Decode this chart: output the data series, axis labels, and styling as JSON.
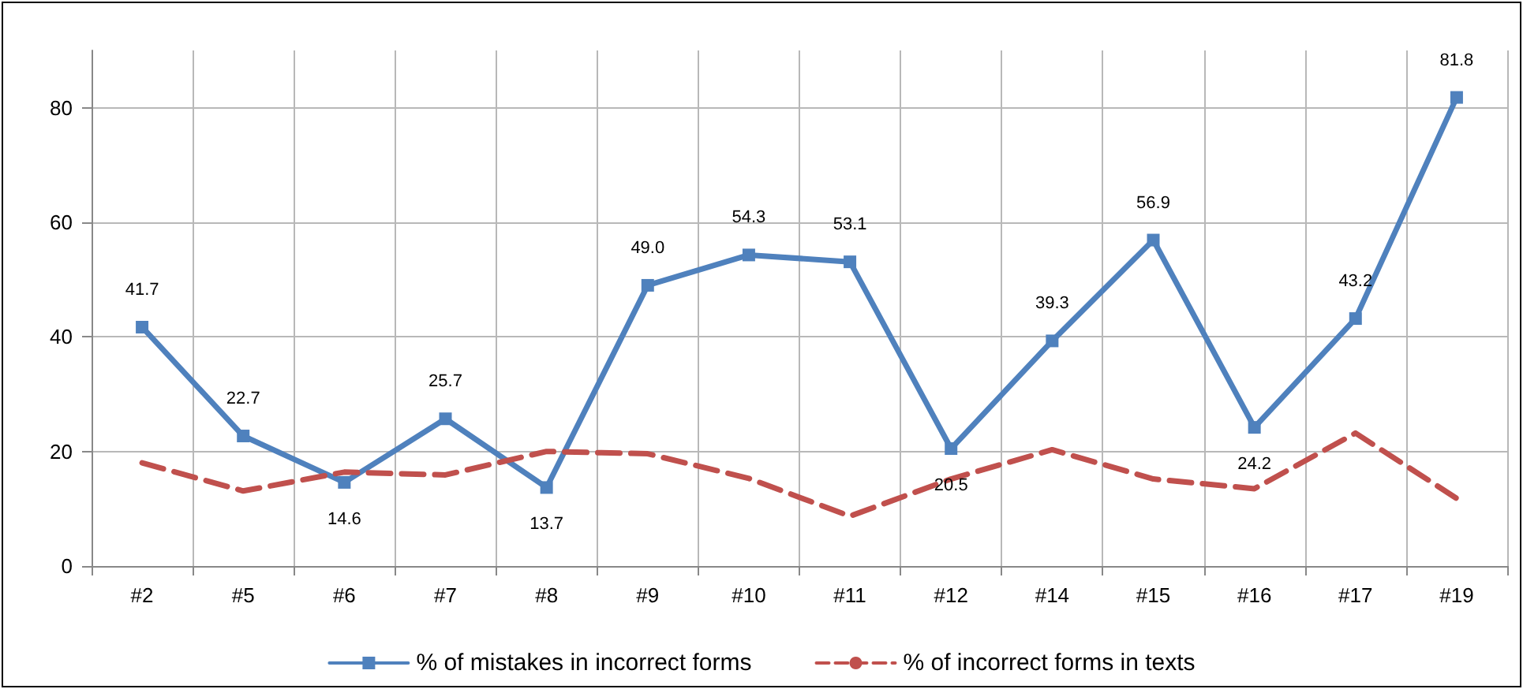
{
  "chart_data": {
    "type": "line",
    "categories": [
      "#2",
      "#5",
      "#6",
      "#7",
      "#8",
      "#9",
      "#10",
      "#11",
      "#12",
      "#14",
      "#15",
      "#16",
      "#17",
      "#19"
    ],
    "series": [
      {
        "name": "% of mistakes in incorrect forms",
        "color": "#4f81bd",
        "marker": "square",
        "line_style": "solid",
        "values": [
          41.7,
          22.7,
          14.6,
          25.7,
          13.7,
          49.0,
          54.3,
          53.1,
          20.5,
          39.3,
          56.9,
          24.2,
          43.2,
          81.8
        ],
        "value_labels": [
          "41.7",
          "22.7",
          "14.6",
          "25.7",
          "13.7",
          "49.0",
          "54.3",
          "53.1",
          "20.5",
          "39.3",
          "56.9",
          "24.2",
          "43.2",
          "81.8"
        ]
      },
      {
        "name": "% of incorrect forms in texts",
        "color": "#c0504d",
        "marker": "none",
        "line_style": "dashed",
        "values": [
          18,
          13.1,
          16.4,
          15.9,
          20,
          19.6,
          15.3,
          8.7,
          15.2,
          20.3,
          15.2,
          13.5,
          23.2,
          11.8
        ]
      }
    ],
    "ylim": [
      0,
      90
    ],
    "yticks": [
      0,
      20,
      40,
      60,
      80
    ],
    "grid": true,
    "legend": "bottom"
  }
}
